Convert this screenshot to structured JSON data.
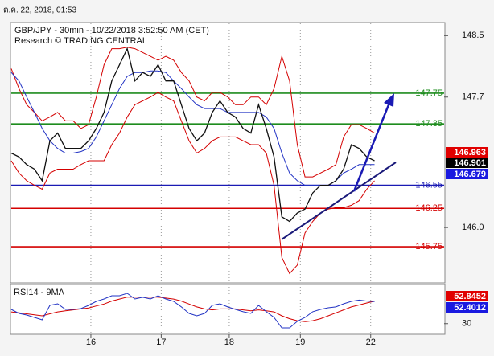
{
  "header": {
    "timestamp": "ต.ค. 22, 2018, 01:53"
  },
  "chart_data": [
    {
      "type": "line",
      "title": "GBP/JPY - 30min - 10/22/2018 3:52:50 AM (CET)",
      "subtitle": "Research © TRADING CENTRAL",
      "x": [
        0,
        1,
        2,
        3,
        4,
        5,
        6,
        7,
        8,
        9,
        10,
        11,
        12,
        13,
        14,
        15,
        16,
        17,
        18,
        19,
        20,
        21,
        22,
        23,
        24,
        25,
        26,
        27,
        28,
        29,
        30,
        31,
        32,
        33,
        34,
        35,
        36,
        37,
        38,
        39,
        40,
        41,
        42,
        43,
        44,
        45,
        46,
        47
      ],
      "xlim": [
        0,
        56
      ],
      "xticks": [
        {
          "value": 10.3,
          "label": "16"
        },
        {
          "value": 19.4,
          "label": "17"
        },
        {
          "value": 28.2,
          "label": "18"
        },
        {
          "value": 37.4,
          "label": "19"
        },
        {
          "value": 46.5,
          "label": "22"
        }
      ],
      "ylim": [
        145.3,
        148.65
      ],
      "yticks": [
        148.5,
        147.7,
        {
          "value": 146,
          "label": "146.0"
        }
      ],
      "series": [
        {
          "color": "#d40000",
          "values": [
            148.07,
            147.81,
            147.6,
            147.5,
            147.39,
            147.44,
            147.5,
            147.39,
            147.39,
            147.29,
            147.34,
            147.7,
            148.12,
            148.33,
            148.33,
            148.35,
            148.33,
            148.28,
            148.23,
            148.18,
            148.23,
            148.18,
            148.02,
            147.91,
            147.7,
            147.65,
            147.76,
            147.76,
            147.7,
            147.6,
            147.6,
            147.7,
            147.7,
            147.6,
            147.81,
            148.23,
            147.91,
            147.08,
            146.66,
            146.66,
            146.71,
            146.76,
            146.82,
            147.18,
            147.34,
            147.34,
            147.29,
            147.23
          ]
        },
        {
          "color": "#d40000",
          "values": [
            146.87,
            146.71,
            146.61,
            146.55,
            146.5,
            146.71,
            146.76,
            146.76,
            146.76,
            146.82,
            146.87,
            146.87,
            146.87,
            147.08,
            147.23,
            147.44,
            147.6,
            147.65,
            147.7,
            147.76,
            147.7,
            147.65,
            147.39,
            147.13,
            146.97,
            147.03,
            147.13,
            147.18,
            147.18,
            147.18,
            147.13,
            147.08,
            147.08,
            146.97,
            146.55,
            145.61,
            145.4,
            145.51,
            145.93,
            146.08,
            146.19,
            146.24,
            146.26,
            146.26,
            146.29,
            146.35,
            146.5,
            146.61
          ]
        },
        {
          "color": "#2233c4",
          "values": [
            148.02,
            147.91,
            147.7,
            147.5,
            147.29,
            147.13,
            147.03,
            146.97,
            146.97,
            146.99,
            147.03,
            147.18,
            147.39,
            147.6,
            147.81,
            147.97,
            148.02,
            148.02,
            148.04,
            148.04,
            148.02,
            147.91,
            147.81,
            147.7,
            147.6,
            147.55,
            147.55,
            147.55,
            147.5,
            147.5,
            147.5,
            147.5,
            147.5,
            147.44,
            147.29,
            146.97,
            146.71,
            146.61,
            146.55,
            146.55,
            146.55,
            146.55,
            146.61,
            146.71,
            146.76,
            146.82,
            146.82,
            146.82
          ]
        },
        {
          "color": "#111111",
          "values": [
            146.97,
            146.92,
            146.82,
            146.76,
            146.61,
            147.13,
            147.23,
            147.03,
            147.03,
            147.03,
            147.13,
            147.29,
            147.5,
            147.91,
            148.12,
            148.33,
            147.91,
            148.02,
            147.97,
            148.12,
            147.91,
            147.91,
            147.6,
            147.29,
            147.13,
            147.23,
            147.5,
            147.65,
            147.5,
            147.44,
            147.29,
            147.23,
            147.6,
            147.29,
            146.92,
            146.14,
            146.08,
            146.19,
            146.24,
            146.45,
            146.55,
            146.55,
            146.61,
            146.76,
            147.08,
            147.03,
            146.92,
            146.87
          ]
        }
      ],
      "levels": [
        {
          "value": 147.75,
          "color": "#1e8c1e"
        },
        {
          "value": 147.35,
          "color": "#1e8c1e"
        },
        {
          "value": 146.55,
          "color": "#1a1ab4"
        },
        {
          "value": 146.25,
          "color": "#d40000"
        },
        {
          "value": 145.75,
          "color": "#d40000"
        }
      ],
      "price_labels": [
        {
          "text": "146.963",
          "color": "#e00000"
        },
        {
          "text": "146.901",
          "color": "#000000"
        },
        {
          "text": "146.679",
          "color": "#1a1ae0"
        }
      ]
    },
    {
      "type": "line",
      "title": "RSI14 - 9MA",
      "ylim": [
        20,
        69
      ],
      "yticks": [
        30
      ],
      "series": [
        {
          "color": "#d40000",
          "values": [
            42,
            41,
            40,
            39,
            38,
            40,
            42,
            43,
            44,
            45,
            46,
            48,
            50,
            53,
            55,
            57,
            57,
            57,
            57,
            57,
            56,
            55,
            53,
            50,
            47,
            45,
            44,
            45,
            45,
            45,
            44,
            43,
            44,
            43,
            42,
            38,
            35,
            33,
            32,
            33,
            35,
            38,
            41,
            44,
            47,
            49,
            51,
            52.85
          ]
        },
        {
          "color": "#2233c4",
          "values": [
            44.5,
            40.4,
            38.8,
            36.3,
            33.9,
            48.6,
            50.2,
            44.5,
            44.5,
            45.3,
            48.6,
            52.7,
            55.1,
            58.4,
            58.4,
            60.8,
            55.1,
            56.8,
            55.1,
            58.4,
            55.1,
            52.7,
            47.0,
            40.4,
            38.0,
            40.4,
            48.6,
            50.2,
            47.0,
            44.5,
            42.1,
            40.4,
            48.6,
            42.1,
            36.3,
            25.7,
            25.7,
            32.3,
            36.3,
            42.1,
            44.5,
            46.1,
            47.0,
            50.2,
            52.7,
            54.0,
            53.0,
            52.4
          ]
        }
      ],
      "price_labels": [
        {
          "text": "52.8452",
          "color": "#e00000"
        },
        {
          "text": "52.4012",
          "color": "#1a1ae0"
        }
      ]
    }
  ]
}
